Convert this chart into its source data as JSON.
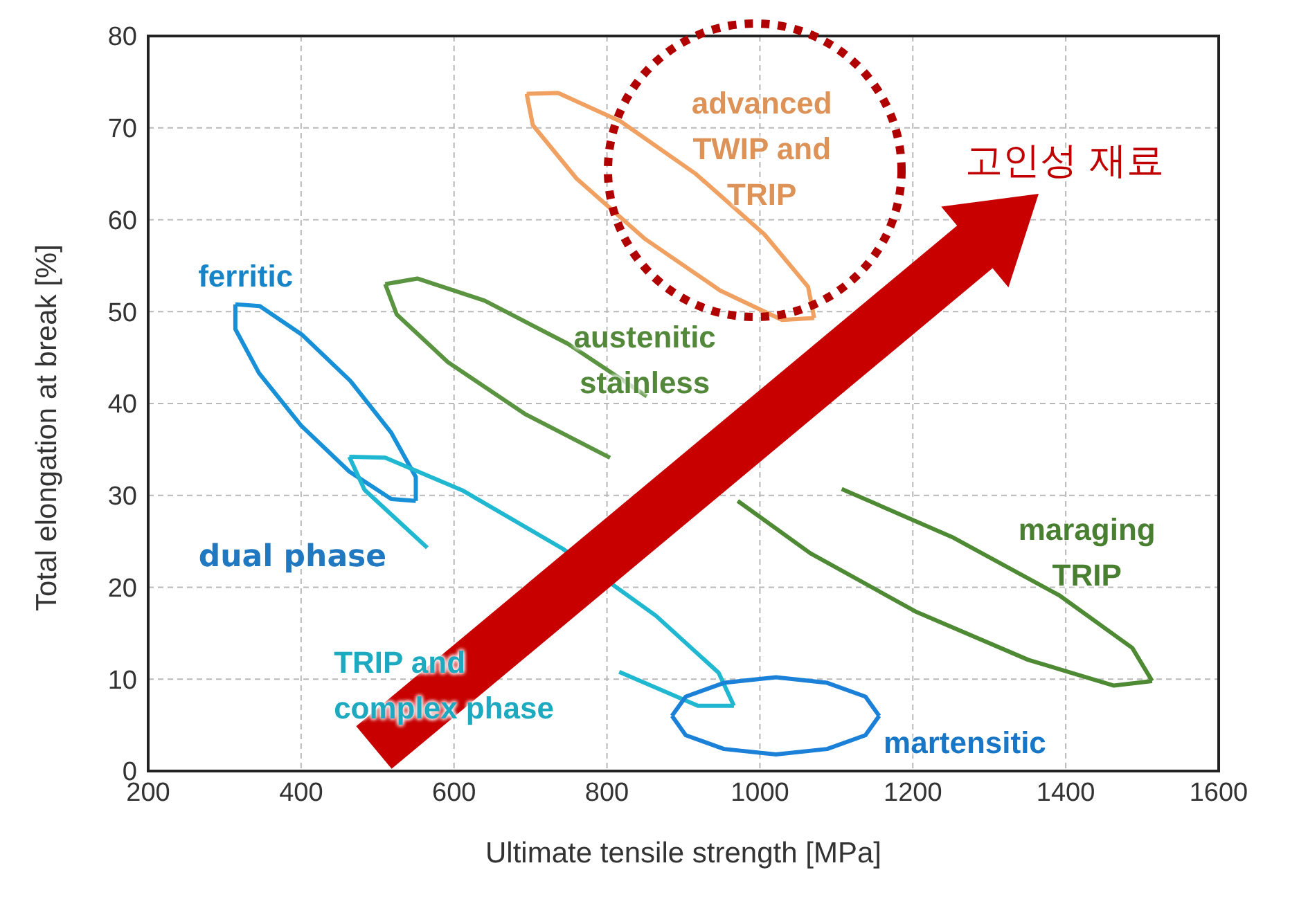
{
  "chart_data": {
    "type": "line",
    "xlabel": "Ultimate tensile strength [MPa]",
    "ylabel": "Total elongation at break [%]",
    "xlim": [
      200,
      1600
    ],
    "xticks": [
      200,
      400,
      600,
      800,
      1000,
      1200,
      1400,
      1600
    ],
    "ylim": [
      0,
      80
    ],
    "yticks": [
      0,
      10,
      20,
      30,
      40,
      50,
      60,
      70,
      80
    ],
    "grid": true,
    "marker": "none",
    "series": [
      {
        "name": "advanced TWIP and TRIP",
        "color": "#f0a060",
        "x": [
          695,
          736,
          818,
          916,
          1006,
          1063,
          1071
        ],
        "values": [
          73.7,
          73.8,
          70.7,
          65.0,
          58.4,
          52.7,
          49.3
        ]
      },
      {
        "color": "#f0a060",
        "x": [
          695,
          703,
          760,
          850,
          948,
          1029,
          1071
        ],
        "values": [
          73.7,
          70.3,
          64.5,
          57.9,
          52.3,
          49.1,
          49.3
        ]
      },
      {
        "name": "ferritic",
        "color": "#1890d8",
        "x": [
          314,
          346,
          401,
          464,
          518,
          550,
          550
        ],
        "values": [
          50.8,
          50.6,
          47.5,
          42.5,
          36.8,
          32.0,
          29.4
        ]
      },
      {
        "color": "#1890d8",
        "x": [
          314,
          314,
          345,
          400,
          463,
          518,
          550
        ],
        "values": [
          50.8,
          48.1,
          43.3,
          37.6,
          32.6,
          29.6,
          29.4
        ]
      },
      {
        "name": "austenitic stainless",
        "color": "#5a9440",
        "x": [
          510,
          552,
          640,
          749,
          852
        ],
        "values": [
          53.0,
          53.6,
          51.2,
          46.5,
          40.8
        ]
      },
      {
        "color": "#5a9440",
        "x": [
          510,
          525,
          592,
          694,
          804
        ],
        "values": [
          53.0,
          49.7,
          44.5,
          38.8,
          34.1
        ]
      },
      {
        "name": "maraging TRIP",
        "color": "#4e8a34",
        "x": [
          1107,
          1253,
          1392,
          1487,
          1513
        ],
        "values": [
          30.7,
          25.4,
          19.1,
          13.4,
          9.8
        ]
      },
      {
        "color": "#4e8a34",
        "x": [
          971,
          1066,
          1205,
          1351,
          1463,
          1513
        ],
        "values": [
          29.4,
          23.7,
          17.3,
          12.1,
          9.3,
          9.8
        ]
      },
      {
        "name": "TRIP and complex phase",
        "color": "#20b8d0",
        "x": [
          463,
          510,
          612,
          742,
          864,
          946,
          966
        ],
        "values": [
          34.2,
          34.1,
          30.5,
          24.2,
          16.9,
          10.7,
          7.1
        ]
      },
      {
        "color": "#20b8d0",
        "x": [
          463,
          483,
          565,
          687,
          816,
          919,
          966
        ],
        "values": [
          34.2,
          30.6,
          24.3,
          null,
          10.8,
          7.1,
          7.1
        ]
      },
      {
        "name": "martensitic",
        "color": "#1a80d8",
        "x": [
          885,
          903,
          953,
          1021,
          1088,
          1138,
          1156
        ],
        "values": [
          6.0,
          8.1,
          9.6,
          10.2,
          9.6,
          8.1,
          6.0
        ]
      },
      {
        "color": "#1a80d8",
        "x": [
          885,
          903,
          953,
          1021,
          1088,
          1138,
          1156
        ],
        "values": [
          6.0,
          3.9,
          2.4,
          1.8,
          2.4,
          3.9,
          6.0
        ]
      }
    ],
    "annotations": [
      "dual phase",
      "고인성 재료"
    ]
  }
}
